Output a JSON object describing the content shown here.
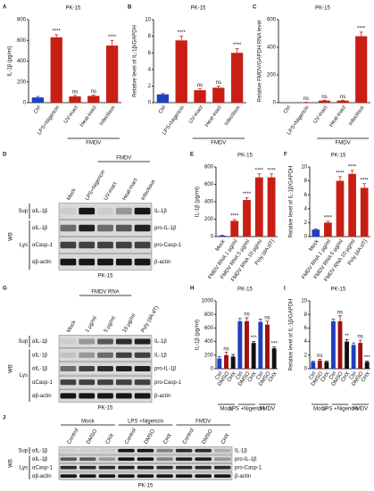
{
  "chart_data": [
    {
      "type": "bar",
      "panel": "A",
      "title": "PK-15",
      "ylabel": "IL-1β (pg/ml)",
      "categories": [
        "Ctrl",
        "LPS+Nigericin",
        "UV-inact",
        "Heat-inact",
        "Infectious"
      ],
      "values": [
        50,
        630,
        60,
        65,
        550
      ],
      "errors": [
        10,
        25,
        10,
        10,
        50
      ],
      "colors": [
        "#1f3fbf",
        "#c81e14",
        "#c81e14",
        "#c81e14",
        "#c81e14"
      ],
      "annotations": [
        null,
        "****",
        "ns",
        "ns",
        "****"
      ],
      "group_labels": [
        {
          "label": "FMDV",
          "span": [
            2,
            4
          ]
        }
      ],
      "ylim": [
        0,
        800
      ],
      "yticks": [
        0,
        200,
        400,
        600,
        800
      ]
    },
    {
      "type": "bar",
      "panel": "B",
      "title": "PK-15",
      "ylabel": "Relative level of IL-1β/GAPDH",
      "categories": [
        "Ctrl",
        "LPS+Nigericin",
        "UV-inact",
        "Heat-inact",
        "Infectious"
      ],
      "values": [
        1,
        7.5,
        1.5,
        1.8,
        6
      ],
      "errors": [
        0.1,
        0.5,
        0.2,
        0.2,
        0.5
      ],
      "colors": [
        "#1f3fbf",
        "#c81e14",
        "#c81e14",
        "#c81e14",
        "#c81e14"
      ],
      "annotations": [
        null,
        "****",
        "ns",
        "ns",
        "****"
      ],
      "group_labels": [
        {
          "label": "FMDV",
          "span": [
            2,
            4
          ]
        }
      ],
      "ylim": [
        0,
        10
      ],
      "yticks": [
        0,
        2,
        4,
        6,
        8,
        10
      ]
    },
    {
      "type": "bar",
      "panel": "C",
      "title": "PK-15",
      "ylabel": "Relative FMDV/GAPDH RNA level",
      "categories": [
        "Ctrl",
        "LPS+Nigericin",
        "UV-inact",
        "Heat-inact",
        "Infectious"
      ],
      "values": [
        0,
        2,
        15,
        15,
        480
      ],
      "errors": [
        0,
        1,
        3,
        3,
        30
      ],
      "colors": [
        "#1f3fbf",
        "#c81e14",
        "#c81e14",
        "#c81e14",
        "#c81e14"
      ],
      "annotations": [
        null,
        "ns",
        "ns",
        "ns",
        "****"
      ],
      "group_labels": [
        {
          "label": "FMDV",
          "span": [
            2,
            4
          ]
        }
      ],
      "ylim": [
        0,
        600
      ],
      "yticks": [
        0,
        200,
        400,
        600
      ]
    },
    {
      "type": "bar",
      "panel": "E",
      "title": "PK-15",
      "ylabel": "IL-1β (pg/ml)",
      "categories": [
        "Mock",
        "FMDV RNA 1 μg/ml",
        "FMDV RNA 5 μg/ml",
        "FMDV RNA 10 μg/ml",
        "Poly (dA:dT)"
      ],
      "values": [
        10,
        180,
        420,
        680,
        680
      ],
      "errors": [
        5,
        15,
        25,
        40,
        40
      ],
      "colors": [
        "#1f3fbf",
        "#c81e14",
        "#c81e14",
        "#c81e14",
        "#c81e14"
      ],
      "annotations": [
        null,
        "****",
        "****",
        "****",
        "****"
      ],
      "ylim": [
        0,
        800
      ],
      "yticks": [
        0,
        200,
        400,
        600,
        800
      ]
    },
    {
      "type": "bar",
      "panel": "F",
      "title": "PK-15",
      "ylabel": "Relative level of IL-1β/GAPDH",
      "categories": [
        "Mock",
        "FMDV RNA 1 μg/ml",
        "FMDV RNA 5 μg/ml",
        "FMDV RNA 10 μg/ml",
        "Poly (dA:dT)"
      ],
      "values": [
        1,
        2,
        8,
        9,
        7
      ],
      "errors": [
        0.1,
        0.2,
        0.6,
        0.5,
        0.6
      ],
      "colors": [
        "#1f3fbf",
        "#c81e14",
        "#c81e14",
        "#c81e14",
        "#c81e14"
      ],
      "annotations": [
        null,
        "****",
        "****",
        "****",
        "****"
      ],
      "ylim": [
        0,
        10
      ],
      "yticks": [
        0,
        2,
        4,
        6,
        8,
        10
      ]
    },
    {
      "type": "bar",
      "panel": "H",
      "title": "PK-15",
      "ylabel": "IL-1β (pg/ml)",
      "categories": [
        "Ctrl",
        "DMSO",
        "CHX",
        "Ctrl",
        "DMSO",
        "CHX",
        "Ctrl",
        "DMSO",
        "CHX"
      ],
      "values": [
        150,
        200,
        180,
        700,
        700,
        380,
        690,
        650,
        300
      ],
      "errors": [
        30,
        40,
        30,
        40,
        50,
        20,
        40,
        50,
        20
      ],
      "colors": [
        "#1f3fbf",
        "#a01010",
        "#111111",
        "#1f3fbf",
        "#a01010",
        "#111111",
        "#1f3fbf",
        "#a01010",
        "#111111"
      ],
      "annotations": [
        null,
        "ns",
        null,
        null,
        "ns",
        "***",
        null,
        "ns",
        "***"
      ],
      "group_labels": [
        {
          "label": "Mock",
          "span": [
            0,
            2
          ]
        },
        {
          "label": "LPS +Nigericin",
          "span": [
            3,
            5
          ]
        },
        {
          "label": "FMDV",
          "span": [
            6,
            8
          ]
        }
      ],
      "ylim": [
        0,
        1000
      ],
      "yticks": [
        0,
        200,
        400,
        600,
        800,
        1000
      ]
    },
    {
      "type": "bar",
      "panel": "I",
      "title": "PK-15",
      "ylabel": "Relative level of IL-1β/GAPDH",
      "categories": [
        "Ctrl",
        "DMSO",
        "CHX",
        "Ctrl",
        "DMSO",
        "CHX",
        "Ctrl",
        "DMSO",
        "CHX"
      ],
      "values": [
        1,
        1.2,
        1,
        7,
        7,
        4,
        3.5,
        3.8,
        1
      ],
      "errors": [
        0.1,
        0.2,
        0.1,
        0.3,
        0.8,
        0.3,
        0.3,
        0.4,
        0.1
      ],
      "colors": [
        "#1f3fbf",
        "#a01010",
        "#111111",
        "#1f3fbf",
        "#a01010",
        "#111111",
        "#1f3fbf",
        "#a01010",
        "#111111"
      ],
      "annotations": [
        null,
        "ns",
        null,
        null,
        "ns",
        "**",
        null,
        "ns",
        "***"
      ],
      "group_labels": [
        {
          "label": "Mock",
          "span": [
            0,
            2
          ]
        },
        {
          "label": "LPS +Nigericin",
          "span": [
            3,
            5
          ]
        },
        {
          "label": "FMDV",
          "span": [
            6,
            8
          ]
        }
      ],
      "ylim": [
        0,
        10
      ],
      "yticks": [
        0,
        2,
        4,
        6,
        8,
        10
      ]
    }
  ],
  "blots": [
    {
      "panel": "D",
      "title": "PK-15",
      "method": "WB",
      "lanes": [
        "Mock",
        "LPS+Nigericin",
        "UV-inact",
        "Heat-inact",
        "Infectious"
      ],
      "group_labels": [
        {
          "label": "FMDV",
          "span": [
            2,
            4
          ]
        }
      ],
      "sections": [
        {
          "name": "Sup",
          "rows": [
            {
              "antibody": "αIL-1β",
              "band": "IL-1β",
              "intensity": [
                0.05,
                0.9,
                0.05,
                0.3,
                0.9
              ]
            }
          ]
        },
        {
          "name": "Lys",
          "rows": [
            {
              "antibody": "αIL-1β",
              "band": "pro-IL-1β",
              "intensity": [
                0.5,
                0.85,
                0.5,
                0.6,
                0.85
              ]
            },
            {
              "antibody": "αCasp-1",
              "band": "pro-Casp-1",
              "intensity": [
                0.7,
                0.7,
                0.7,
                0.7,
                0.7
              ]
            },
            {
              "antibody": "αβ-actin",
              "band": "β-actin",
              "intensity": [
                0.9,
                0.9,
                0.9,
                0.9,
                0.9
              ]
            }
          ]
        }
      ]
    },
    {
      "panel": "G",
      "title": "PK-15",
      "method": "WB",
      "lanes": [
        "Mock",
        "1 μg/ml",
        "5 μg/ml",
        "10 μg/ml",
        "Poly (dA:dT)"
      ],
      "group_labels": [
        {
          "label": "FMDV RNA",
          "span": [
            1,
            3
          ]
        }
      ],
      "sections": [
        {
          "name": "Sup",
          "rows": [
            {
              "antibody": "αIL-1β",
              "band": "IL-1β",
              "intensity": [
                0.05,
                0.3,
                0.6,
                0.8,
                0.85
              ]
            }
          ]
        },
        {
          "name": "Lys",
          "rows": [
            {
              "antibody": "αIL-1β",
              "band": "IL-1β",
              "intensity": [
                0.1,
                0.3,
                0.5,
                0.7,
                0.7
              ]
            },
            {
              "antibody": "αIL-1β",
              "band": "pro-IL-1β",
              "intensity": [
                0.5,
                0.7,
                0.8,
                0.85,
                0.85
              ]
            },
            {
              "antibody": "αCasp-1",
              "band": "pro-Casp-1",
              "intensity": [
                0.7,
                0.7,
                0.7,
                0.7,
                0.7
              ]
            },
            {
              "antibody": "αβ-actin",
              "band": "β-actin",
              "intensity": [
                0.9,
                0.9,
                0.9,
                0.9,
                0.9
              ]
            }
          ]
        }
      ]
    },
    {
      "panel": "J",
      "title": "PK-15",
      "method": "WB",
      "lanes": [
        "Control",
        "DMSO",
        "CHX",
        "Control",
        "DMSO",
        "CHX",
        "Control",
        "DMSO",
        "CHX"
      ],
      "group_labels": [
        {
          "label": "Mock",
          "span": [
            0,
            2
          ]
        },
        {
          "label": "LPS +Nigericin",
          "span": [
            3,
            5
          ]
        },
        {
          "label": "FMDV",
          "span": [
            6,
            8
          ]
        }
      ],
      "sections": [
        {
          "name": "Sup",
          "rows": [
            {
              "antibody": "αIL-1β",
              "band": "IL-1β",
              "intensity": [
                0.05,
                0.05,
                0.05,
                0.9,
                0.9,
                0.4,
                0.8,
                0.8,
                0.2
              ]
            }
          ]
        },
        {
          "name": "Lys",
          "rows": [
            {
              "antibody": "αIL-1β",
              "band": "pro-IL-1β",
              "intensity": [
                0.6,
                0.6,
                0.3,
                0.9,
                0.9,
                0.4,
                0.85,
                0.85,
                0.3
              ]
            },
            {
              "antibody": "αCasp-1",
              "band": "pro-Casp-1",
              "intensity": [
                0.8,
                0.8,
                0.8,
                0.85,
                0.85,
                0.8,
                0.8,
                0.8,
                0.8
              ]
            },
            {
              "antibody": "αβ-actin",
              "band": "β-actin",
              "intensity": [
                0.9,
                0.9,
                0.9,
                0.9,
                0.9,
                0.9,
                0.9,
                0.9,
                0.9
              ]
            }
          ]
        }
      ]
    }
  ]
}
